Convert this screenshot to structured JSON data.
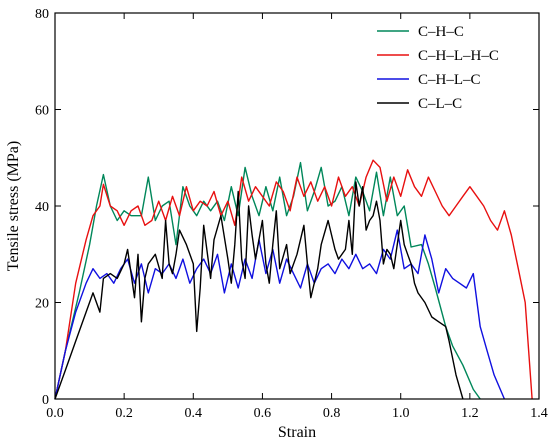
{
  "chart_data": {
    "type": "line",
    "title": "",
    "xlabel": "Strain",
    "ylabel": "Tensile stress (MPa)",
    "xlim": [
      0.0,
      1.4
    ],
    "ylim": [
      0,
      80
    ],
    "x_ticks": [
      "0.0",
      "0.2",
      "0.4",
      "0.6",
      "0.8",
      "1.0",
      "1.2",
      "1.4"
    ],
    "y_ticks": [
      "0",
      "20",
      "40",
      "60",
      "80"
    ],
    "grid": false,
    "legend_position": "top-right",
    "series": [
      {
        "name": "C–H–C",
        "color": "#00875a",
        "points": [
          [
            0.0,
            0
          ],
          [
            0.03,
            10
          ],
          [
            0.07,
            22
          ],
          [
            0.1,
            32
          ],
          [
            0.12,
            40
          ],
          [
            0.14,
            46.5
          ],
          [
            0.16,
            40
          ],
          [
            0.18,
            37
          ],
          [
            0.2,
            39
          ],
          [
            0.22,
            38
          ],
          [
            0.25,
            38
          ],
          [
            0.27,
            46
          ],
          [
            0.29,
            37
          ],
          [
            0.31,
            40
          ],
          [
            0.33,
            41
          ],
          [
            0.35,
            32
          ],
          [
            0.37,
            44
          ],
          [
            0.39,
            40
          ],
          [
            0.41,
            38
          ],
          [
            0.43,
            41
          ],
          [
            0.45,
            39
          ],
          [
            0.47,
            41
          ],
          [
            0.49,
            37
          ],
          [
            0.51,
            44
          ],
          [
            0.53,
            38
          ],
          [
            0.55,
            48
          ],
          [
            0.57,
            42
          ],
          [
            0.59,
            38
          ],
          [
            0.61,
            44
          ],
          [
            0.63,
            39
          ],
          [
            0.65,
            46
          ],
          [
            0.67,
            38
          ],
          [
            0.69,
            42
          ],
          [
            0.71,
            49
          ],
          [
            0.73,
            39
          ],
          [
            0.75,
            43
          ],
          [
            0.77,
            48
          ],
          [
            0.79,
            40
          ],
          [
            0.81,
            41
          ],
          [
            0.83,
            44
          ],
          [
            0.85,
            38
          ],
          [
            0.87,
            46
          ],
          [
            0.89,
            43
          ],
          [
            0.91,
            39
          ],
          [
            0.93,
            47
          ],
          [
            0.95,
            38
          ],
          [
            0.97,
            46
          ],
          [
            0.99,
            38
          ],
          [
            1.01,
            40
          ],
          [
            1.03,
            31.5
          ],
          [
            1.06,
            32
          ],
          [
            1.08,
            28
          ],
          [
            1.1,
            23
          ],
          [
            1.13,
            15
          ],
          [
            1.15,
            11
          ],
          [
            1.18,
            7
          ],
          [
            1.21,
            2
          ],
          [
            1.23,
            0
          ]
        ]
      },
      {
        "name": "C–H–L–H–C",
        "color": "#e81010",
        "points": [
          [
            0.0,
            0
          ],
          [
            0.03,
            10
          ],
          [
            0.06,
            24
          ],
          [
            0.09,
            33
          ],
          [
            0.11,
            38
          ],
          [
            0.13,
            40
          ],
          [
            0.14,
            44.5
          ],
          [
            0.16,
            40
          ],
          [
            0.18,
            39
          ],
          [
            0.2,
            36
          ],
          [
            0.22,
            39
          ],
          [
            0.24,
            40
          ],
          [
            0.26,
            36
          ],
          [
            0.28,
            37
          ],
          [
            0.3,
            41
          ],
          [
            0.32,
            37
          ],
          [
            0.34,
            42
          ],
          [
            0.36,
            38
          ],
          [
            0.38,
            44
          ],
          [
            0.4,
            39
          ],
          [
            0.42,
            41
          ],
          [
            0.44,
            40
          ],
          [
            0.46,
            43
          ],
          [
            0.48,
            38
          ],
          [
            0.5,
            41
          ],
          [
            0.52,
            36
          ],
          [
            0.54,
            46
          ],
          [
            0.56,
            41
          ],
          [
            0.58,
            44
          ],
          [
            0.6,
            42
          ],
          [
            0.62,
            40
          ],
          [
            0.64,
            45
          ],
          [
            0.66,
            43
          ],
          [
            0.68,
            39
          ],
          [
            0.7,
            46
          ],
          [
            0.72,
            42
          ],
          [
            0.74,
            45
          ],
          [
            0.76,
            41
          ],
          [
            0.78,
            44
          ],
          [
            0.8,
            40
          ],
          [
            0.82,
            46
          ],
          [
            0.84,
            42
          ],
          [
            0.86,
            44
          ],
          [
            0.88,
            40
          ],
          [
            0.9,
            46
          ],
          [
            0.92,
            49.5
          ],
          [
            0.94,
            48
          ],
          [
            0.96,
            41
          ],
          [
            0.98,
            46
          ],
          [
            1.0,
            42
          ],
          [
            1.02,
            47.5
          ],
          [
            1.04,
            44
          ],
          [
            1.06,
            42
          ],
          [
            1.08,
            46
          ],
          [
            1.1,
            43
          ],
          [
            1.12,
            40
          ],
          [
            1.14,
            38
          ],
          [
            1.16,
            40
          ],
          [
            1.18,
            42
          ],
          [
            1.2,
            44
          ],
          [
            1.22,
            42
          ],
          [
            1.24,
            40
          ],
          [
            1.26,
            37
          ],
          [
            1.28,
            35
          ],
          [
            1.3,
            39
          ],
          [
            1.32,
            34
          ],
          [
            1.34,
            27
          ],
          [
            1.36,
            20
          ],
          [
            1.38,
            0
          ]
        ]
      },
      {
        "name": "C–H–L–C",
        "color": "#1010e0",
        "points": [
          [
            0.0,
            0
          ],
          [
            0.03,
            10
          ],
          [
            0.06,
            18
          ],
          [
            0.09,
            24
          ],
          [
            0.11,
            27
          ],
          [
            0.13,
            25
          ],
          [
            0.15,
            26
          ],
          [
            0.17,
            24
          ],
          [
            0.19,
            27
          ],
          [
            0.21,
            29
          ],
          [
            0.23,
            24
          ],
          [
            0.25,
            28
          ],
          [
            0.27,
            22
          ],
          [
            0.29,
            27
          ],
          [
            0.31,
            26
          ],
          [
            0.33,
            28
          ],
          [
            0.35,
            25
          ],
          [
            0.37,
            29
          ],
          [
            0.39,
            24
          ],
          [
            0.41,
            27
          ],
          [
            0.43,
            29
          ],
          [
            0.45,
            26
          ],
          [
            0.47,
            30
          ],
          [
            0.49,
            22
          ],
          [
            0.51,
            28
          ],
          [
            0.53,
            23
          ],
          [
            0.55,
            29
          ],
          [
            0.57,
            25
          ],
          [
            0.59,
            33
          ],
          [
            0.61,
            26
          ],
          [
            0.63,
            31
          ],
          [
            0.65,
            24
          ],
          [
            0.67,
            29
          ],
          [
            0.69,
            26
          ],
          [
            0.71,
            23
          ],
          [
            0.73,
            28
          ],
          [
            0.75,
            24
          ],
          [
            0.77,
            27
          ],
          [
            0.79,
            28
          ],
          [
            0.81,
            26
          ],
          [
            0.83,
            29
          ],
          [
            0.85,
            27
          ],
          [
            0.87,
            30
          ],
          [
            0.89,
            27
          ],
          [
            0.91,
            28
          ],
          [
            0.93,
            26
          ],
          [
            0.95,
            31
          ],
          [
            0.97,
            29
          ],
          [
            0.99,
            35
          ],
          [
            1.01,
            27
          ],
          [
            1.03,
            28
          ],
          [
            1.05,
            26
          ],
          [
            1.07,
            34
          ],
          [
            1.09,
            29
          ],
          [
            1.11,
            22
          ],
          [
            1.13,
            27
          ],
          [
            1.15,
            25
          ],
          [
            1.17,
            24
          ],
          [
            1.19,
            23
          ],
          [
            1.21,
            26
          ],
          [
            1.23,
            15
          ],
          [
            1.25,
            10
          ],
          [
            1.27,
            5
          ],
          [
            1.3,
            0
          ]
        ]
      },
      {
        "name": "C–L–C",
        "color": "#000000",
        "points": [
          [
            0.0,
            0
          ],
          [
            0.03,
            6
          ],
          [
            0.06,
            12
          ],
          [
            0.09,
            18
          ],
          [
            0.11,
            22
          ],
          [
            0.13,
            18
          ],
          [
            0.14,
            25
          ],
          [
            0.16,
            26
          ],
          [
            0.18,
            25
          ],
          [
            0.2,
            28
          ],
          [
            0.21,
            31
          ],
          [
            0.22,
            26
          ],
          [
            0.23,
            21
          ],
          [
            0.24,
            30
          ],
          [
            0.25,
            16
          ],
          [
            0.26,
            25
          ],
          [
            0.27,
            28
          ],
          [
            0.29,
            30
          ],
          [
            0.31,
            25
          ],
          [
            0.32,
            37
          ],
          [
            0.33,
            28
          ],
          [
            0.34,
            26
          ],
          [
            0.35,
            30
          ],
          [
            0.36,
            35
          ],
          [
            0.38,
            32
          ],
          [
            0.4,
            28
          ],
          [
            0.41,
            14
          ],
          [
            0.42,
            23
          ],
          [
            0.43,
            36
          ],
          [
            0.45,
            25
          ],
          [
            0.46,
            33
          ],
          [
            0.48,
            38
          ],
          [
            0.5,
            29
          ],
          [
            0.51,
            24
          ],
          [
            0.52,
            32
          ],
          [
            0.53,
            43
          ],
          [
            0.54,
            29
          ],
          [
            0.55,
            25
          ],
          [
            0.56,
            40
          ],
          [
            0.57,
            34
          ],
          [
            0.58,
            29
          ],
          [
            0.6,
            37
          ],
          [
            0.61,
            28
          ],
          [
            0.62,
            24
          ],
          [
            0.63,
            32
          ],
          [
            0.64,
            39
          ],
          [
            0.65,
            27
          ],
          [
            0.67,
            32
          ],
          [
            0.68,
            26
          ],
          [
            0.7,
            30
          ],
          [
            0.72,
            36
          ],
          [
            0.73,
            28
          ],
          [
            0.74,
            21
          ],
          [
            0.76,
            27
          ],
          [
            0.77,
            32
          ],
          [
            0.79,
            37
          ],
          [
            0.81,
            31
          ],
          [
            0.82,
            29
          ],
          [
            0.84,
            31
          ],
          [
            0.85,
            37
          ],
          [
            0.86,
            30
          ],
          [
            0.87,
            45
          ],
          [
            0.88,
            40
          ],
          [
            0.89,
            44
          ],
          [
            0.9,
            35
          ],
          [
            0.91,
            37
          ],
          [
            0.92,
            38
          ],
          [
            0.93,
            41
          ],
          [
            0.94,
            37
          ],
          [
            0.95,
            28
          ],
          [
            0.96,
            31
          ],
          [
            0.97,
            30
          ],
          [
            0.98,
            27
          ],
          [
            1.0,
            37
          ],
          [
            1.01,
            32
          ],
          [
            1.02,
            30
          ],
          [
            1.03,
            28
          ],
          [
            1.04,
            24
          ],
          [
            1.05,
            22
          ],
          [
            1.07,
            20
          ],
          [
            1.09,
            17
          ],
          [
            1.11,
            16
          ],
          [
            1.13,
            15
          ],
          [
            1.14,
            12
          ],
          [
            1.16,
            5
          ],
          [
            1.18,
            0
          ]
        ]
      }
    ]
  }
}
